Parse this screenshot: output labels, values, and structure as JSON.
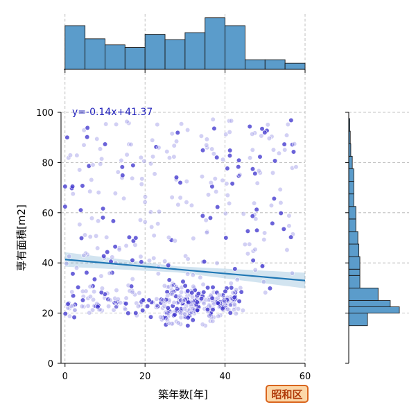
{
  "chart_data": {
    "type": "scatter",
    "xlabel": "築年数[年]",
    "ylabel": "専有面積[m2]",
    "xlim": [
      -1,
      60
    ],
    "ylim": [
      0,
      100
    ],
    "xticks": [
      0,
      20,
      40,
      60
    ],
    "yticks": [
      0,
      20,
      40,
      60,
      80,
      100
    ],
    "grid": true,
    "regression": {
      "label": "y=-0.14x+41.37",
      "slope": -0.14,
      "intercept": 41.37
    },
    "marginal_x_hist": {
      "bin_edges": [
        0,
        5,
        10,
        15,
        20,
        25,
        30,
        35,
        40,
        45,
        50,
        55,
        60
      ],
      "relative_heights": [
        1.0,
        0.7,
        0.56,
        0.5,
        0.8,
        0.68,
        0.84,
        1.18,
        1.0,
        0.22,
        0.22,
        0.14
      ]
    },
    "marginal_y_hist": {
      "bin_edges": [
        15,
        20,
        22.5,
        25,
        30,
        35,
        37.5,
        42.5,
        47.5,
        52.5,
        57.5,
        62.5,
        67.5,
        72.5,
        77.5,
        82.5,
        87.5,
        92.5,
        97.5
      ],
      "relative_counts": [
        0.37,
        1.0,
        0.82,
        0.58,
        0.22,
        0.22,
        0.22,
        0.2,
        0.18,
        0.14,
        0.14,
        0.1,
        0.1,
        0.1,
        0.07,
        0.04,
        0.03,
        0.02
      ]
    },
    "point_color": "#3a2fcc",
    "line_color": "#1f77b4",
    "hist_color": "#5b9ccb",
    "badge_label": "昭和区"
  }
}
